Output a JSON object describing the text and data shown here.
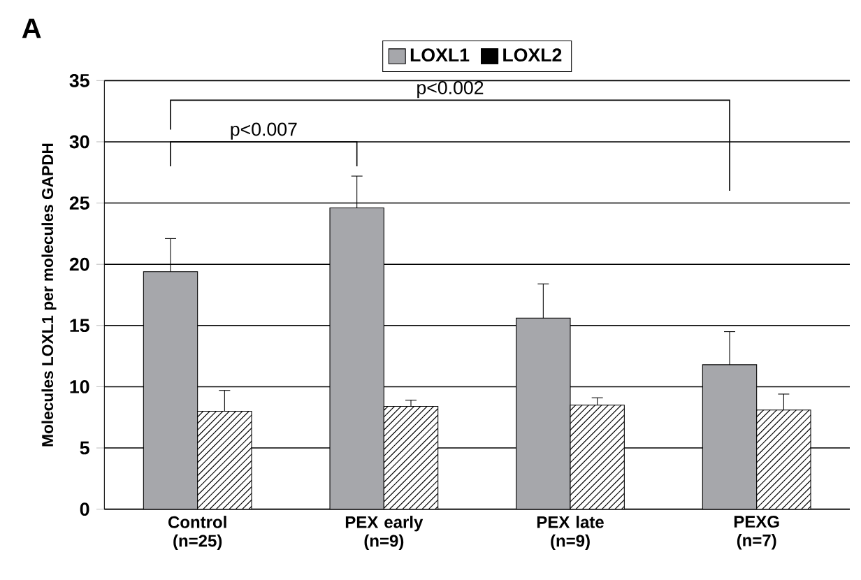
{
  "chart_data": {
    "type": "bar",
    "ylabel": "Molecules LOXL1 per molecules GAPDH",
    "categories": [
      "Control (n=25)",
      "PEX early (n=9)",
      "PEX late (n=9)",
      "PEXG (n=7)"
    ],
    "series": [
      {
        "name": "LOXL1",
        "color": "#a6a7ab",
        "values": [
          19.4,
          24.6,
          15.6,
          11.8
        ],
        "errors": [
          2.7,
          2.6,
          2.8,
          2.7
        ]
      },
      {
        "name": "LOXL2",
        "color": "#ffffff",
        "values": [
          8.0,
          8.4,
          8.5,
          8.1
        ],
        "errors": [
          1.7,
          0.5,
          0.6,
          1.3
        ]
      }
    ],
    "ylim": [
      0,
      35
    ],
    "yticks": [
      0,
      5,
      10,
      15,
      20,
      25,
      30,
      35
    ],
    "grid": "y",
    "legend": "top",
    "annotations": [
      "A",
      "p<0.007",
      "p<0.002"
    ]
  }
}
